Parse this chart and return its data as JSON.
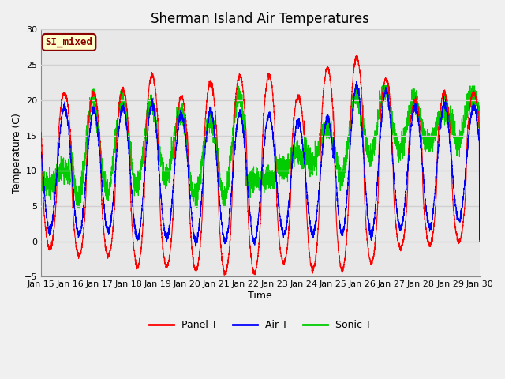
{
  "title": "Sherman Island Air Temperatures",
  "xlabel": "Time",
  "ylabel": "Temperature (C)",
  "ylim": [
    -5,
    30
  ],
  "x_tick_labels": [
    "Jan 15",
    "Jan 16",
    "Jan 17",
    "Jan 18",
    "Jan 19",
    "Jan 20",
    "Jan 21",
    "Jan 22",
    "Jan 23",
    "Jan 24",
    "Jan 25",
    "Jan 26",
    "Jan 27",
    "Jan 28",
    "Jan 29",
    "Jan 30"
  ],
  "label_text": "SI_mixed",
  "label_bg": "#ffffcc",
  "label_border": "#8b0000",
  "label_text_color": "#8b0000",
  "panel_color": "#ff0000",
  "air_color": "#0000ff",
  "sonic_color": "#00cc00",
  "bg_color": "#e8e8e8",
  "fig_bg": "#f0f0f0",
  "grid_color": "#d0d0d0",
  "legend_labels": [
    "Panel T",
    "Air T",
    "Sonic T"
  ],
  "title_fontsize": 12,
  "axis_label_fontsize": 9,
  "tick_fontsize": 8
}
